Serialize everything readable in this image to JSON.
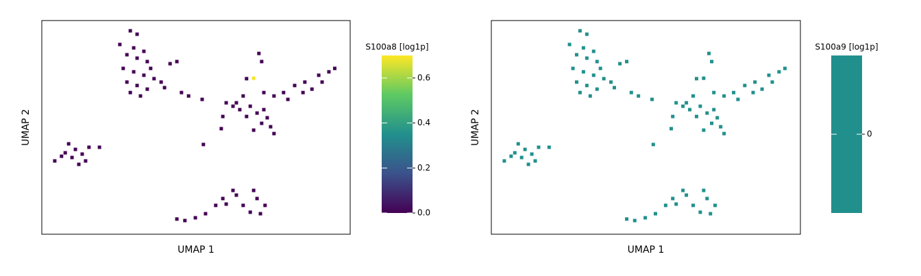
{
  "chart_data": [
    {
      "type": "scatter",
      "xlabel": "UMAP 1",
      "ylabel": "UMAP 2",
      "colorbar_label": "S100a8 [log1p]",
      "colormap": "viridis",
      "xlim": [
        0,
        100
      ],
      "ylim": [
        0,
        100
      ],
      "clim": [
        0,
        0.7
      ],
      "cticks": [
        {
          "value": 0,
          "label": "0.0"
        },
        0.2,
        0.4,
        0.6
      ],
      "x": [
        28.7,
        30.9,
        25.3,
        29.8,
        33.1,
        27.6,
        30.9,
        34.2,
        26.4,
        29.8,
        33.1,
        36.4,
        27.6,
        30.9,
        34.2,
        38.7,
        28.7,
        39.8,
        32.0,
        35.3,
        41.6,
        43.8,
        45.3,
        47.6,
        52.0,
        59.8,
        63.1,
        70.4,
        71.3,
        66.4,
        65.3,
        68.7,
        72.0,
        75.3,
        78.4,
        82.0,
        85.3,
        87.6,
        84.7,
        89.8,
        93.1,
        95.0,
        90.9,
        79.8,
        67.6,
        69.8,
        73.1,
        71.3,
        74.2,
        68.7,
        75.3,
        72.0,
        64.2,
        62.0,
        66.4,
        52.4,
        58.2,
        58.7,
        4.2,
        6.4,
        8.7,
        10.9,
        13.1,
        15.3,
        18.7,
        12.0,
        9.8,
        14.2,
        7.6,
        43.8,
        46.4,
        49.8,
        53.1,
        56.4,
        59.8,
        63.1,
        65.3,
        67.6,
        69.8,
        72.4,
        68.7,
        62.0,
        70.9,
        58.7
      ],
      "y": [
        95.2,
        93.6,
        88.8,
        87.2,
        85.6,
        84.0,
        82.4,
        80.8,
        77.6,
        76.0,
        74.4,
        72.8,
        71.2,
        69.6,
        67.9,
        71.2,
        66.3,
        68.6,
        64.7,
        77.6,
        79.8,
        80.8,
        66.3,
        64.7,
        63.1,
        61.5,
        61.5,
        84.6,
        80.8,
        72.8,
        64.7,
        73.0,
        66.3,
        64.7,
        66.3,
        69.6,
        71.2,
        67.9,
        66.3,
        74.4,
        76.0,
        77.6,
        71.2,
        63.1,
        59.9,
        56.7,
        54.5,
        51.9,
        50.3,
        48.7,
        47.1,
        58.3,
        58.3,
        59.9,
        55.1,
        42.0,
        49.4,
        55.1,
        34.3,
        36.5,
        42.3,
        39.7,
        37.5,
        40.7,
        40.7,
        32.7,
        35.9,
        34.3,
        38.1,
        7.1,
        6.4,
        7.7,
        9.6,
        13.5,
        14.1,
        18.3,
        13.5,
        10.3,
        16.7,
        13.5,
        20.5,
        20.5,
        9.6,
        16.7
      ],
      "values": [
        0,
        0,
        0,
        0,
        0,
        0,
        0,
        0,
        0,
        0,
        0,
        0,
        0,
        0,
        0,
        0,
        0,
        0,
        0,
        0,
        0,
        0,
        0,
        0,
        0,
        0,
        0,
        0,
        0,
        0,
        0,
        0.69,
        0,
        0,
        0,
        0,
        0,
        0,
        0,
        0,
        0,
        0,
        0,
        0,
        0,
        0,
        0,
        0,
        0,
        0,
        0,
        0,
        0,
        0,
        0,
        0,
        0,
        0,
        0,
        0,
        0,
        0,
        0,
        0,
        0,
        0,
        0,
        0,
        0,
        0,
        0,
        0,
        0,
        0,
        0,
        0,
        0,
        0,
        0,
        0,
        0,
        0,
        0,
        0
      ]
    },
    {
      "type": "scatter",
      "xlabel": "UMAP 1",
      "ylabel": "UMAP 2",
      "colorbar_label": "S100a9 [log1p]",
      "color": "#21908d",
      "xlim": [
        0,
        100
      ],
      "ylim": [
        0,
        100
      ],
      "clim": [
        -0.5,
        0.5
      ],
      "cticks": [
        0
      ],
      "x": [
        28.7,
        30.9,
        25.3,
        29.8,
        33.1,
        27.6,
        30.9,
        34.2,
        26.4,
        29.8,
        33.1,
        36.4,
        27.6,
        30.9,
        34.2,
        38.7,
        28.7,
        39.8,
        32.0,
        35.3,
        41.6,
        43.8,
        45.3,
        47.6,
        52.0,
        59.8,
        63.1,
        70.4,
        71.3,
        66.4,
        65.3,
        68.7,
        72.0,
        75.3,
        78.4,
        82.0,
        85.3,
        87.6,
        84.7,
        89.8,
        93.1,
        95.0,
        90.9,
        79.8,
        67.6,
        69.8,
        73.1,
        71.3,
        74.2,
        68.7,
        75.3,
        72.0,
        64.2,
        62.0,
        66.4,
        52.4,
        58.2,
        58.7,
        4.2,
        6.4,
        8.7,
        10.9,
        13.1,
        15.3,
        18.7,
        12.0,
        9.8,
        14.2,
        7.6,
        43.8,
        46.4,
        49.8,
        53.1,
        56.4,
        59.8,
        63.1,
        65.3,
        67.6,
        69.8,
        72.4,
        68.7,
        62.0,
        70.9,
        58.7
      ],
      "y": [
        95.2,
        93.6,
        88.8,
        87.2,
        85.6,
        84.0,
        82.4,
        80.8,
        77.6,
        76.0,
        74.4,
        72.8,
        71.2,
        69.6,
        67.9,
        71.2,
        66.3,
        68.6,
        64.7,
        77.6,
        79.8,
        80.8,
        66.3,
        64.7,
        63.1,
        61.5,
        61.5,
        84.6,
        80.8,
        72.8,
        64.7,
        73.0,
        66.3,
        64.7,
        66.3,
        69.6,
        71.2,
        67.9,
        66.3,
        74.4,
        76.0,
        77.6,
        71.2,
        63.1,
        59.9,
        56.7,
        54.5,
        51.9,
        50.3,
        48.7,
        47.1,
        58.3,
        58.3,
        59.9,
        55.1,
        42.0,
        49.4,
        55.1,
        34.3,
        36.5,
        42.3,
        39.7,
        37.5,
        40.7,
        40.7,
        32.7,
        35.9,
        34.3,
        38.1,
        7.1,
        6.4,
        7.7,
        9.6,
        13.5,
        14.1,
        18.3,
        13.5,
        10.3,
        16.7,
        13.5,
        20.5,
        20.5,
        9.6,
        16.7
      ],
      "values": [
        0,
        0,
        0,
        0,
        0,
        0,
        0,
        0,
        0,
        0,
        0,
        0,
        0,
        0,
        0,
        0,
        0,
        0,
        0,
        0,
        0,
        0,
        0,
        0,
        0,
        0,
        0,
        0,
        0,
        0,
        0,
        0,
        0,
        0,
        0,
        0,
        0,
        0,
        0,
        0,
        0,
        0,
        0,
        0,
        0,
        0,
        0,
        0,
        0,
        0,
        0,
        0,
        0,
        0,
        0,
        0,
        0,
        0,
        0,
        0,
        0,
        0,
        0,
        0,
        0,
        0,
        0,
        0,
        0,
        0,
        0,
        0,
        0,
        0,
        0,
        0,
        0,
        0,
        0,
        0,
        0,
        0,
        0,
        0
      ]
    }
  ]
}
